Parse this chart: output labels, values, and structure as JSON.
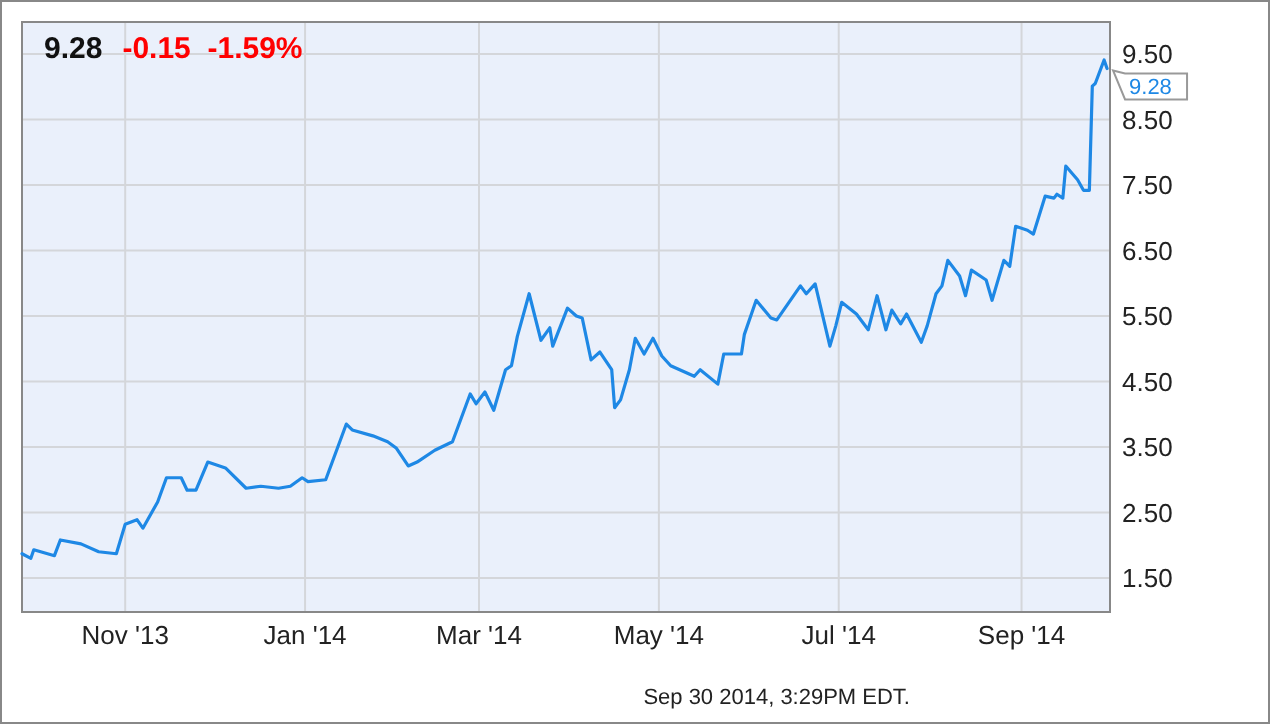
{
  "chart_data": {
    "type": "line",
    "title": "9.28",
    "subtitle": "-0.15  -1.59%",
    "annotations": [
      {
        "text": "9.28",
        "x": "2014-09-30",
        "y": 9.28
      },
      "Sep 30 2014, 3:29PM EDT."
    ],
    "x": [
      "2013-09-27",
      "2013-09-30",
      "2013-10-01",
      "2013-10-08",
      "2013-10-10",
      "2013-10-17",
      "2013-10-23",
      "2013-10-29",
      "2013-11-01",
      "2013-11-05",
      "2013-11-07",
      "2013-11-12",
      "2013-11-15",
      "2013-11-20",
      "2013-11-22",
      "2013-11-25",
      "2013-11-29",
      "2013-12-05",
      "2013-12-12",
      "2013-12-17",
      "2013-12-23",
      "2013-12-27",
      "2013-12-31",
      "2014-01-02",
      "2014-01-08",
      "2014-01-15",
      "2014-01-17",
      "2014-01-24",
      "2014-01-29",
      "2014-02-01",
      "2014-02-05",
      "2014-02-08",
      "2014-02-14",
      "2014-02-20",
      "2014-02-26",
      "2014-02-28",
      "2014-03-03",
      "2014-03-06",
      "2014-03-10",
      "2014-03-12",
      "2014-03-14",
      "2014-03-18",
      "2014-03-22",
      "2014-03-25",
      "2014-03-26",
      "2014-03-31",
      "2014-04-03",
      "2014-04-05",
      "2014-04-08",
      "2014-04-11",
      "2014-04-15",
      "2014-04-16",
      "2014-04-18",
      "2014-04-21",
      "2014-04-23",
      "2014-04-26",
      "2014-04-29",
      "2014-05-02",
      "2014-05-05",
      "2014-05-13",
      "2014-05-15",
      "2014-05-21",
      "2014-05-23",
      "2014-05-29",
      "2014-05-30",
      "2014-06-03",
      "2014-06-08",
      "2014-06-10",
      "2014-06-18",
      "2014-06-20",
      "2014-06-23",
      "2014-06-28",
      "2014-06-30",
      "2014-07-02",
      "2014-07-07",
      "2014-07-11",
      "2014-07-14",
      "2014-07-17",
      "2014-07-19",
      "2014-07-22",
      "2014-07-24",
      "2014-07-29",
      "2014-07-31",
      "2014-08-03",
      "2014-08-05",
      "2014-08-07",
      "2014-08-11",
      "2014-08-13",
      "2014-08-15",
      "2014-08-20",
      "2014-08-22",
      "2014-08-26",
      "2014-08-28",
      "2014-08-30",
      "2014-09-03",
      "2014-09-05",
      "2014-09-09",
      "2014-09-12",
      "2014-09-13",
      "2014-09-15",
      "2014-09-16",
      "2014-09-20",
      "2014-09-22",
      "2014-09-24",
      "2014-09-25",
      "2014-09-26",
      "2014-09-29",
      "2014-09-30"
    ],
    "series": [
      {
        "color": "#1e88e5",
        "values": [
          1.87,
          1.8,
          1.93,
          1.84,
          2.08,
          2.02,
          1.9,
          1.87,
          2.32,
          2.39,
          2.26,
          2.66,
          3.03,
          3.03,
          2.84,
          2.84,
          3.27,
          3.18,
          2.87,
          2.9,
          2.87,
          2.9,
          3.03,
          2.97,
          3.0,
          3.85,
          3.76,
          3.67,
          3.58,
          3.48,
          3.21,
          3.27,
          3.45,
          3.58,
          4.31,
          4.16,
          4.34,
          4.06,
          4.68,
          4.74,
          5.19,
          5.84,
          5.13,
          5.32,
          5.04,
          5.62,
          5.5,
          5.47,
          4.83,
          4.95,
          4.68,
          4.1,
          4.22,
          4.68,
          5.16,
          4.92,
          5.16,
          4.89,
          4.74,
          4.58,
          4.68,
          4.46,
          4.92,
          4.92,
          5.22,
          5.74,
          5.47,
          5.44,
          5.96,
          5.84,
          5.99,
          5.04,
          5.35,
          5.71,
          5.53,
          5.29,
          5.81,
          5.29,
          5.59,
          5.38,
          5.53,
          5.1,
          5.35,
          5.84,
          5.96,
          6.35,
          6.11,
          5.81,
          6.2,
          6.05,
          5.74,
          6.35,
          6.26,
          6.87,
          6.81,
          6.75,
          7.33,
          7.3,
          7.36,
          7.3,
          7.79,
          7.58,
          7.42,
          7.42,
          9.01,
          9.05,
          9.41,
          9.28
        ]
      }
    ],
    "xlim": [
      "2013-09-27",
      "2014-10-01"
    ],
    "xticks": [
      {
        "value": "2013-11-01",
        "label": "Nov '13"
      },
      {
        "value": "2014-01-01",
        "label": "Jan '14"
      },
      {
        "value": "2014-03-01",
        "label": "Mar '14"
      },
      {
        "value": "2014-05-01",
        "label": "May '14"
      },
      {
        "value": "2014-07-01",
        "label": "Jul '14"
      },
      {
        "value": "2014-09-01",
        "label": "Sep '14"
      }
    ],
    "ylim": [
      0.98,
      9.99
    ],
    "yticks": [
      {
        "value": 1.5,
        "label": "1.50"
      },
      {
        "value": 2.5,
        "label": "2.50"
      },
      {
        "value": 3.5,
        "label": "3.50"
      },
      {
        "value": 4.5,
        "label": "4.50"
      },
      {
        "value": 5.5,
        "label": "5.50"
      },
      {
        "value": 6.5,
        "label": "6.50"
      },
      {
        "value": 7.5,
        "label": "7.50"
      },
      {
        "value": 8.5,
        "label": "8.50"
      },
      {
        "value": 9.5,
        "label": "9.50"
      }
    ],
    "grid": true,
    "marker": "none",
    "line_style": "solid"
  }
}
